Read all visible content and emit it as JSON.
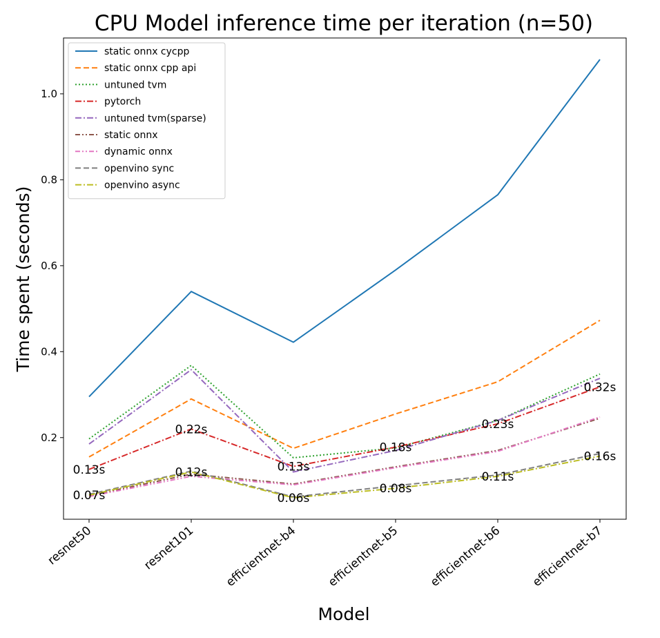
{
  "chart_data": {
    "type": "line",
    "title": "CPU Model inference time per iteration (n=50)",
    "xlabel": "Model",
    "ylabel": "Time spent (seconds)",
    "categories": [
      "resnet50",
      "resnet101",
      "efficientnet-b4",
      "efficientnet-b5",
      "efficientnet-b6",
      "efficientnet-b7"
    ],
    "y_ticks": [
      "0.2",
      "0.4",
      "0.6",
      "0.8",
      "1.0"
    ],
    "ylim": [
      0.01,
      1.13
    ],
    "grid": false,
    "legend_position": "top-left",
    "series": [
      {
        "name": "static onnx cycpp",
        "color": "#1f77b4",
        "dash": "solid",
        "values": [
          0.295,
          0.54,
          0.422,
          0.59,
          0.765,
          1.08
        ]
      },
      {
        "name": "static onnx cpp api",
        "color": "#ff7f0e",
        "dash": "dashed",
        "values": [
          0.155,
          0.29,
          0.175,
          0.255,
          0.33,
          0.473
        ]
      },
      {
        "name": "untuned tvm",
        "color": "#2ca02c",
        "dash": "dotted",
        "values": [
          0.197,
          0.368,
          0.153,
          0.176,
          0.24,
          0.348
        ]
      },
      {
        "name": "pytorch",
        "color": "#d62728",
        "dash": "dashdot",
        "values": [
          0.126,
          0.22,
          0.133,
          0.178,
          0.232,
          0.318
        ]
      },
      {
        "name": "untuned tvm(sparse)",
        "color": "#9467bd",
        "dash": "dashdot",
        "values": [
          0.185,
          0.358,
          0.12,
          0.17,
          0.24,
          0.338
        ]
      },
      {
        "name": "static onnx",
        "color": "#8c564b",
        "dash": "dashdotdot",
        "values": [
          0.065,
          0.115,
          0.092,
          0.132,
          0.17,
          0.245
        ]
      },
      {
        "name": "dynamic onnx",
        "color": "#e377c2",
        "dash": "dashdotdot",
        "values": [
          0.063,
          0.11,
          0.09,
          0.13,
          0.168,
          0.248
        ]
      },
      {
        "name": "openvino sync",
        "color": "#7f7f7f",
        "dash": "dashed",
        "values": [
          0.068,
          0.122,
          0.062,
          0.088,
          0.113,
          0.163
        ]
      },
      {
        "name": "openvino async",
        "color": "#bcbd22",
        "dash": "dashdot",
        "values": [
          0.066,
          0.12,
          0.06,
          0.082,
          0.11,
          0.157
        ]
      }
    ],
    "annotations": [
      {
        "text": "0.13s",
        "x": "resnet50",
        "y": 0.126
      },
      {
        "text": "0.22s",
        "x": "resnet101",
        "y": 0.22
      },
      {
        "text": "0.13s",
        "x": "efficientnet-b4",
        "y": 0.133
      },
      {
        "text": "0.18s",
        "x": "efficientnet-b5",
        "y": 0.178
      },
      {
        "text": "0.23s",
        "x": "efficientnet-b6",
        "y": 0.232
      },
      {
        "text": "0.32s",
        "x": "efficientnet-b7",
        "y": 0.318
      },
      {
        "text": "0.07s",
        "x": "resnet50",
        "y": 0.066
      },
      {
        "text": "0.12s",
        "x": "resnet101",
        "y": 0.12
      },
      {
        "text": "0.06s",
        "x": "efficientnet-b4",
        "y": 0.06
      },
      {
        "text": "0.08s",
        "x": "efficientnet-b5",
        "y": 0.082
      },
      {
        "text": "0.11s",
        "x": "efficientnet-b6",
        "y": 0.11
      },
      {
        "text": "0.16s",
        "x": "efficientnet-b7",
        "y": 0.157
      }
    ]
  }
}
